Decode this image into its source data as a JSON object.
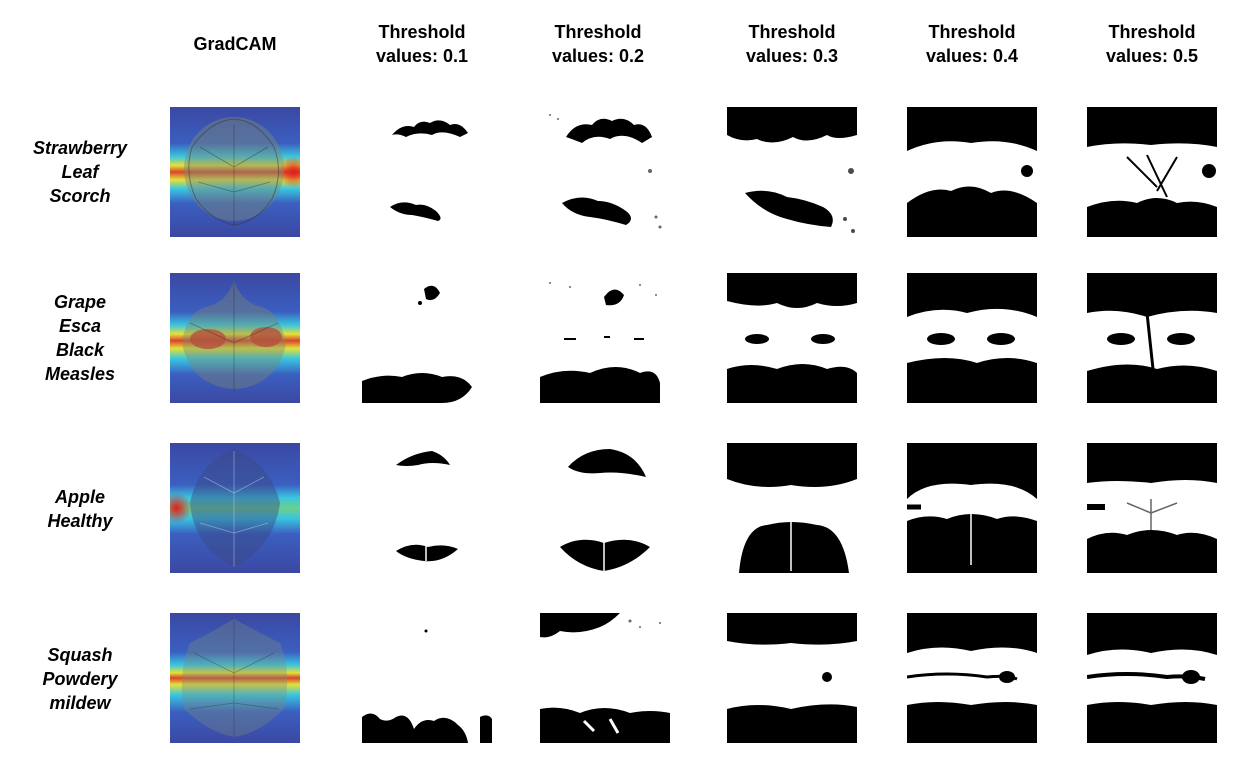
{
  "header": {
    "gradcam": "GradCAM",
    "thresholds": [
      {
        "line1": "Threshold",
        "line2": "values: 0.1",
        "value": 0.1
      },
      {
        "line1": "Threshold",
        "line2": "values: 0.2",
        "value": 0.2
      },
      {
        "line1": "Threshold",
        "line2": "values: 0.3",
        "value": 0.3
      },
      {
        "line1": "Threshold",
        "line2": "values: 0.4",
        "value": 0.4
      },
      {
        "line1": "Threshold",
        "line2": "values: 0.5",
        "value": 0.5
      }
    ]
  },
  "rows": [
    {
      "label_lines": [
        "Strawberry",
        "Leaf",
        "Scorch"
      ]
    },
    {
      "label_lines": [
        "Grape",
        "Esca",
        "Black",
        "Measles"
      ]
    },
    {
      "label_lines": [
        "Apple",
        "Healthy"
      ]
    },
    {
      "label_lines": [
        "Squash",
        "Powdery",
        "mildew"
      ]
    }
  ],
  "colors": {
    "heatmap_blue": "#3a4aa6",
    "heatmap_cyan": "#35c6e0",
    "heatmap_yellow": "#e8e23a",
    "heatmap_red": "#e0281e",
    "mask_black": "#000000",
    "mask_white": "#ffffff"
  }
}
